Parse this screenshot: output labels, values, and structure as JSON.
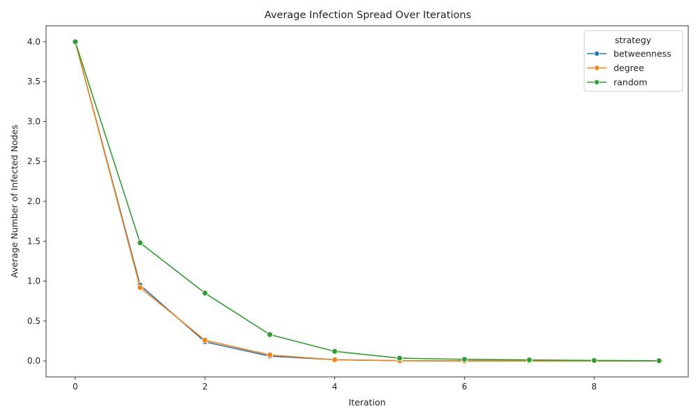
{
  "chart_data": {
    "type": "line",
    "title": "Average Infection Spread Over Iterations",
    "xlabel": "Iteration",
    "ylabel": "Average Number of Infected Nodes",
    "xlim": [
      -0.45,
      9.45
    ],
    "ylim": [
      -0.2,
      4.2
    ],
    "xticks": [
      0,
      2,
      4,
      6,
      8
    ],
    "yticks": [
      0.0,
      0.5,
      1.0,
      1.5,
      2.0,
      2.5,
      3.0,
      3.5,
      4.0
    ],
    "x": [
      0,
      1,
      2,
      3,
      4,
      5,
      6,
      7,
      8,
      9
    ],
    "legend": {
      "title": "strategy",
      "position": "top-right"
    },
    "series": [
      {
        "name": "betweenness",
        "color": "#1f77b4",
        "values": [
          4.0,
          0.95,
          0.24,
          0.06,
          0.015,
          0.003,
          0.001,
          0.0,
          0.0,
          0.0
        ]
      },
      {
        "name": "degree",
        "color": "#ff7f0e",
        "values": [
          4.0,
          0.92,
          0.26,
          0.075,
          0.015,
          0.002,
          0.0,
          0.0,
          0.0,
          0.0
        ]
      },
      {
        "name": "random",
        "color": "#2ca02c",
        "values": [
          4.0,
          1.48,
          0.85,
          0.33,
          0.12,
          0.035,
          0.02,
          0.013,
          0.006,
          0.002
        ]
      }
    ],
    "grid": false
  }
}
